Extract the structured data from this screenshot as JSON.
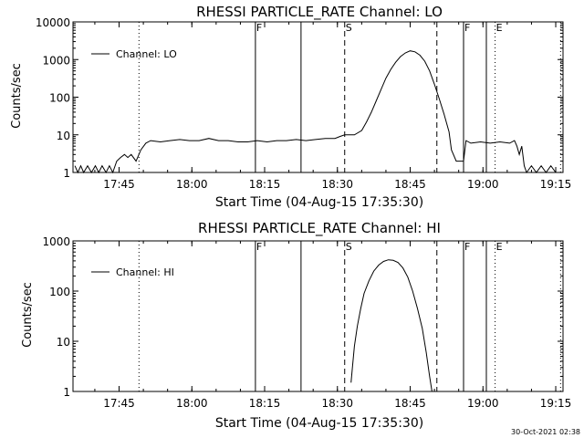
{
  "footer_timestamp": "30-Oct-2021 02:38",
  "chart_data": [
    {
      "type": "line",
      "title": "RHESSI PARTICLE_RATE Channel: LO",
      "xlabel": "Start Time (04-Aug-15 17:35:30)",
      "ylabel": "Counts/sec",
      "yscale": "log",
      "ylim": [
        1,
        10000
      ],
      "xlim_minutes": [
        0,
        101
      ],
      "x_ticks": [
        "17:45",
        "18:00",
        "18:15",
        "18:30",
        "18:45",
        "19:00",
        "19:15"
      ],
      "y_ticks": [
        "1",
        "10",
        "100",
        "1000",
        "10000"
      ],
      "legend": "top-left",
      "series": [
        {
          "name": "Channel: LO",
          "points": [
            [
              0.4,
              1.5
            ],
            [
              1,
              1
            ],
            [
              1.6,
              1.5
            ],
            [
              2.2,
              1
            ],
            [
              3,
              1.5
            ],
            [
              3.8,
              1
            ],
            [
              4.6,
              1.5
            ],
            [
              5.3,
              1
            ],
            [
              6,
              1.5
            ],
            [
              6.8,
              1
            ],
            [
              7.5,
              1.5
            ],
            [
              8.2,
              1
            ],
            [
              9,
              2
            ],
            [
              9.8,
              2.5
            ],
            [
              10.6,
              3
            ],
            [
              11.3,
              2.5
            ],
            [
              12,
              3
            ],
            [
              13,
              2
            ],
            [
              14,
              4
            ],
            [
              15,
              6
            ],
            [
              16,
              7
            ],
            [
              18,
              6.5
            ],
            [
              20,
              7
            ],
            [
              22,
              7.5
            ],
            [
              24,
              7
            ],
            [
              26,
              7
            ],
            [
              28,
              8
            ],
            [
              30,
              7
            ],
            [
              32,
              7
            ],
            [
              34,
              6.5
            ],
            [
              36,
              6.5
            ],
            [
              38,
              7
            ],
            [
              40,
              6.5
            ],
            [
              42,
              7
            ],
            [
              44,
              7
            ],
            [
              46,
              7.5
            ],
            [
              48,
              7
            ],
            [
              50,
              7.5
            ],
            [
              52,
              8
            ],
            [
              54,
              8
            ],
            [
              55,
              9
            ],
            [
              56,
              10
            ],
            [
              58,
              10
            ],
            [
              59.5,
              13
            ],
            [
              60.5,
              22
            ],
            [
              61.5,
              40
            ],
            [
              62.5,
              80
            ],
            [
              63.5,
              160
            ],
            [
              64.5,
              320
            ],
            [
              65.5,
              550
            ],
            [
              66.5,
              850
            ],
            [
              67.5,
              1200
            ],
            [
              68.5,
              1500
            ],
            [
              69.5,
              1700
            ],
            [
              70.5,
              1600
            ],
            [
              71.5,
              1300
            ],
            [
              72.5,
              900
            ],
            [
              73.5,
              500
            ],
            [
              74.5,
              220
            ],
            [
              75.5,
              90
            ],
            [
              76.5,
              35
            ],
            [
              77.5,
              12
            ],
            [
              78,
              4
            ],
            [
              79,
              2
            ],
            [
              80.5,
              2
            ],
            [
              81,
              7
            ],
            [
              82,
              6
            ],
            [
              84,
              6.5
            ],
            [
              86,
              6
            ],
            [
              88,
              6.5
            ],
            [
              90,
              6
            ],
            [
              91,
              7
            ],
            [
              91.5,
              5
            ],
            [
              92,
              3
            ],
            [
              92.5,
              5
            ],
            [
              93,
              1.5
            ],
            [
              93.5,
              1
            ],
            [
              94.5,
              1.5
            ],
            [
              95.5,
              1
            ],
            [
              96.5,
              1.5
            ],
            [
              97.5,
              1
            ],
            [
              98.5,
              1.5
            ],
            [
              99.5,
              1
            ]
          ]
        }
      ],
      "vertical_markers": [
        {
          "minute": 13.6,
          "style": "dotted",
          "label": ""
        },
        {
          "minute": 37.6,
          "style": "solid",
          "label": "F"
        },
        {
          "minute": 47.0,
          "style": "solid",
          "label": ""
        },
        {
          "minute": 56.0,
          "style": "dashed",
          "label": "S"
        },
        {
          "minute": 75.0,
          "style": "dashed",
          "label": ""
        },
        {
          "minute": 80.5,
          "style": "solid",
          "label": "F"
        },
        {
          "minute": 85.2,
          "style": "solid",
          "label": ""
        },
        {
          "minute": 87.0,
          "style": "dotted",
          "label": "E"
        },
        {
          "minute": 100.5,
          "style": "dotted",
          "label": ""
        }
      ]
    },
    {
      "type": "line",
      "title": "RHESSI PARTICLE_RATE Channel: HI",
      "xlabel": "Start Time (04-Aug-15 17:35:30)",
      "ylabel": "Counts/sec",
      "yscale": "log",
      "ylim": [
        1,
        1000
      ],
      "xlim_minutes": [
        0,
        101
      ],
      "x_ticks": [
        "17:45",
        "18:00",
        "18:15",
        "18:30",
        "18:45",
        "19:00",
        "19:15"
      ],
      "y_ticks": [
        "1",
        "10",
        "100",
        "1000"
      ],
      "legend": "top-left",
      "series": [
        {
          "name": "Channel: HI",
          "points": [
            [
              57.3,
              1.5
            ],
            [
              57.6,
              3
            ],
            [
              58,
              8
            ],
            [
              58.6,
              20
            ],
            [
              59.3,
              45
            ],
            [
              60,
              90
            ],
            [
              61,
              160
            ],
            [
              62,
              250
            ],
            [
              63,
              330
            ],
            [
              64,
              390
            ],
            [
              65,
              420
            ],
            [
              66,
              410
            ],
            [
              67,
              370
            ],
            [
              68,
              290
            ],
            [
              69,
              190
            ],
            [
              70,
              100
            ],
            [
              71,
              45
            ],
            [
              72,
              18
            ],
            [
              72.8,
              6
            ],
            [
              73.5,
              2
            ],
            [
              74,
              1
            ]
          ]
        }
      ],
      "vertical_markers": [
        {
          "minute": 13.6,
          "style": "dotted",
          "label": ""
        },
        {
          "minute": 37.6,
          "style": "solid",
          "label": "F"
        },
        {
          "minute": 47.0,
          "style": "solid",
          "label": ""
        },
        {
          "minute": 56.0,
          "style": "dashed",
          "label": "S"
        },
        {
          "minute": 75.0,
          "style": "dashed",
          "label": ""
        },
        {
          "minute": 80.5,
          "style": "solid",
          "label": "F"
        },
        {
          "minute": 85.2,
          "style": "solid",
          "label": ""
        },
        {
          "minute": 87.0,
          "style": "dotted",
          "label": "E"
        },
        {
          "minute": 100.5,
          "style": "dotted",
          "label": ""
        }
      ]
    }
  ]
}
